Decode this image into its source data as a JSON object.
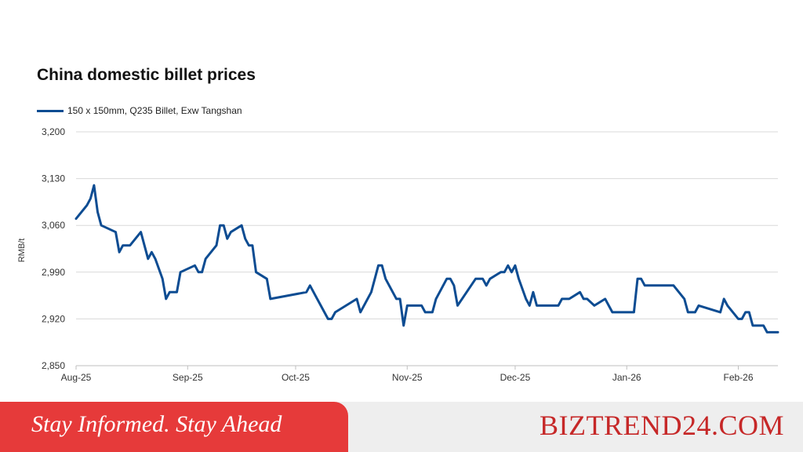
{
  "chart_data": {
    "type": "line",
    "title": "China domestic billet prices",
    "ylabel": "RMB/t",
    "ylim": [
      2850,
      3200
    ],
    "yticks": [
      2850,
      2920,
      2990,
      3060,
      3130,
      3200
    ],
    "ytick_labels": [
      "2,850",
      "2,920",
      "2,990",
      "3,060",
      "3,130",
      "3,200"
    ],
    "xlim": [
      "2025-08-01",
      "2026-02-12"
    ],
    "xticks": [
      "2025-08-01",
      "2025-09-01",
      "2025-10-01",
      "2025-11-01",
      "2025-12-01",
      "2026-01-01",
      "2026-02-01"
    ],
    "xtick_labels": [
      "Aug-25",
      "Sep-25",
      "Oct-25",
      "Nov-25",
      "Dec-25",
      "Jan-26",
      "Feb-26"
    ],
    "grid": true,
    "legend_position": "top-left",
    "series": [
      {
        "name": "150 x 150mm, Q235 Billet, Exw Tangshan",
        "color": "#0d4c92",
        "points": [
          [
            "2025-08-01",
            3070
          ],
          [
            "2025-08-04",
            3090
          ],
          [
            "2025-08-05",
            3100
          ],
          [
            "2025-08-06",
            3120
          ],
          [
            "2025-08-07",
            3080
          ],
          [
            "2025-08-08",
            3060
          ],
          [
            "2025-08-12",
            3050
          ],
          [
            "2025-08-13",
            3020
          ],
          [
            "2025-08-14",
            3030
          ],
          [
            "2025-08-16",
            3030
          ],
          [
            "2025-08-19",
            3050
          ],
          [
            "2025-08-21",
            3010
          ],
          [
            "2025-08-22",
            3020
          ],
          [
            "2025-08-23",
            3010
          ],
          [
            "2025-08-25",
            2980
          ],
          [
            "2025-08-26",
            2950
          ],
          [
            "2025-08-27",
            2960
          ],
          [
            "2025-08-29",
            2960
          ],
          [
            "2025-08-30",
            2990
          ],
          [
            "2025-09-03",
            3000
          ],
          [
            "2025-09-04",
            2990
          ],
          [
            "2025-09-05",
            2990
          ],
          [
            "2025-09-06",
            3010
          ],
          [
            "2025-09-09",
            3030
          ],
          [
            "2025-09-10",
            3060
          ],
          [
            "2025-09-11",
            3060
          ],
          [
            "2025-09-12",
            3040
          ],
          [
            "2025-09-13",
            3050
          ],
          [
            "2025-09-16",
            3060
          ],
          [
            "2025-09-17",
            3040
          ],
          [
            "2025-09-18",
            3030
          ],
          [
            "2025-09-19",
            3030
          ],
          [
            "2025-09-20",
            2990
          ],
          [
            "2025-09-23",
            2980
          ],
          [
            "2025-09-24",
            2950
          ],
          [
            "2025-10-04",
            2960
          ],
          [
            "2025-10-05",
            2970
          ],
          [
            "2025-10-07",
            2950
          ],
          [
            "2025-10-10",
            2920
          ],
          [
            "2025-10-11",
            2920
          ],
          [
            "2025-10-12",
            2930
          ],
          [
            "2025-10-18",
            2950
          ],
          [
            "2025-10-19",
            2930
          ],
          [
            "2025-10-22",
            2960
          ],
          [
            "2025-10-24",
            3000
          ],
          [
            "2025-10-25",
            3000
          ],
          [
            "2025-10-26",
            2980
          ],
          [
            "2025-10-29",
            2950
          ],
          [
            "2025-10-30",
            2950
          ],
          [
            "2025-10-31",
            2910
          ],
          [
            "2025-11-01",
            2940
          ],
          [
            "2025-11-05",
            2940
          ],
          [
            "2025-11-06",
            2930
          ],
          [
            "2025-11-08",
            2930
          ],
          [
            "2025-11-09",
            2950
          ],
          [
            "2025-11-12",
            2980
          ],
          [
            "2025-11-13",
            2980
          ],
          [
            "2025-11-14",
            2970
          ],
          [
            "2025-11-15",
            2940
          ],
          [
            "2025-11-20",
            2980
          ],
          [
            "2025-11-22",
            2980
          ],
          [
            "2025-11-23",
            2970
          ],
          [
            "2025-11-24",
            2980
          ],
          [
            "2025-11-27",
            2990
          ],
          [
            "2025-11-28",
            2990
          ],
          [
            "2025-11-29",
            3000
          ],
          [
            "2025-11-30",
            2990
          ],
          [
            "2025-12-01",
            3000
          ],
          [
            "2025-12-02",
            2980
          ],
          [
            "2025-12-04",
            2950
          ],
          [
            "2025-12-05",
            2940
          ],
          [
            "2025-12-06",
            2960
          ],
          [
            "2025-12-07",
            2940
          ],
          [
            "2025-12-13",
            2940
          ],
          [
            "2025-12-14",
            2950
          ],
          [
            "2025-12-16",
            2950
          ],
          [
            "2025-12-19",
            2960
          ],
          [
            "2025-12-20",
            2950
          ],
          [
            "2025-12-21",
            2950
          ],
          [
            "2025-12-23",
            2940
          ],
          [
            "2025-12-26",
            2950
          ],
          [
            "2025-12-28",
            2930
          ],
          [
            "2026-01-03",
            2930
          ],
          [
            "2026-01-04",
            2980
          ],
          [
            "2026-01-05",
            2980
          ],
          [
            "2026-01-06",
            2970
          ],
          [
            "2026-01-14",
            2970
          ],
          [
            "2026-01-17",
            2950
          ],
          [
            "2026-01-18",
            2930
          ],
          [
            "2026-01-20",
            2930
          ],
          [
            "2026-01-21",
            2940
          ],
          [
            "2026-01-27",
            2930
          ],
          [
            "2026-01-28",
            2950
          ],
          [
            "2026-01-29",
            2940
          ],
          [
            "2026-02-01",
            2920
          ],
          [
            "2026-02-02",
            2920
          ],
          [
            "2026-02-03",
            2930
          ],
          [
            "2026-02-04",
            2930
          ],
          [
            "2026-02-05",
            2910
          ],
          [
            "2026-02-08",
            2910
          ],
          [
            "2026-02-09",
            2900
          ],
          [
            "2026-02-12",
            2900
          ]
        ]
      }
    ]
  },
  "banner": {
    "tagline": "Stay Informed. Stay Ahead",
    "brand": "BIZTREND24.COM",
    "tagline_bg_color": "#e63a3a",
    "brand_color": "#c62828",
    "bg_color": "#eeeeee"
  },
  "colors": {
    "grid": "#d9d9d9",
    "axis": "#bfbfbf",
    "tick_text": "#333333"
  }
}
